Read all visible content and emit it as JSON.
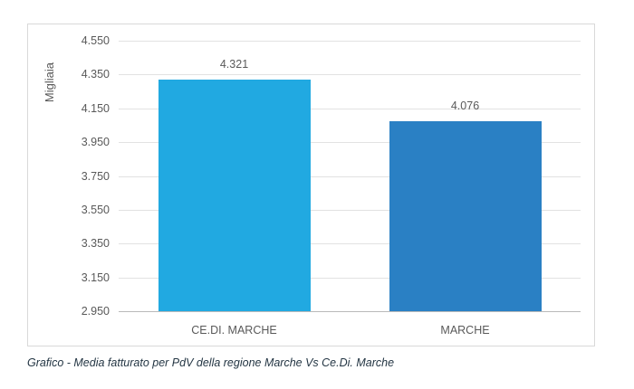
{
  "chart_data": {
    "type": "bar",
    "title": "",
    "categories": [
      "CE.DI. MARCHE",
      "MARCHE"
    ],
    "values": [
      4321,
      4076
    ],
    "value_labels": [
      "4.321",
      "4.076"
    ],
    "bar_colors": [
      "#21a9e1",
      "#2a80c4"
    ],
    "ylabel": "Migliaia",
    "ylim": [
      2950,
      4550
    ],
    "ytick_interval": 200,
    "ytick_labels": [
      "4.550",
      "4.350",
      "4.150",
      "3.950",
      "3.750",
      "3.550",
      "3.350",
      "3.150",
      "2.950"
    ],
    "grid": true,
    "legend": "none"
  },
  "caption": {
    "text": "Grafico - Media fatturato per PdV della regione Marche Vs Ce.Di. Marche",
    "color": "#243644"
  },
  "colors": {
    "grid": "#e2e2e2",
    "axis_line": "#b9b9b9",
    "tick_text": "#595959",
    "chart_border": "#d9d9d9",
    "background": "#ffffff"
  }
}
